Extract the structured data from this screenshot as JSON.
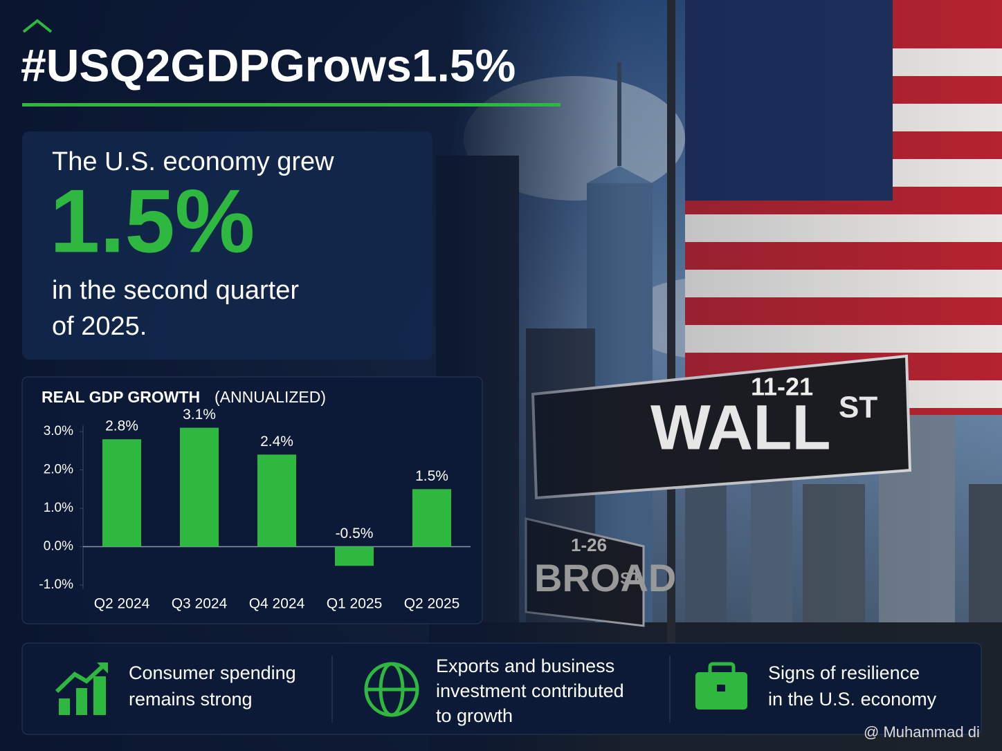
{
  "header": {
    "title": "#USQ2GDPGrows1.5%"
  },
  "callout": {
    "lead": "The U.S. economy grew",
    "figure": "1.5%",
    "lines": [
      "in the second quarter",
      "of 2025."
    ]
  },
  "chart_data": {
    "type": "bar",
    "title": "REAL GDP GROWTH",
    "subtitle": "(ANNUALIZED)",
    "categories": [
      "Q2 2024",
      "Q3 2024",
      "Q4 2024",
      "Q1 2025",
      "Q2 2025"
    ],
    "values": [
      2.8,
      3.1,
      2.4,
      -0.5,
      1.5
    ],
    "value_labels": [
      "2.8%",
      "3.1%",
      "2.4%",
      "-0.5%",
      "1.5%"
    ],
    "color": "#2fb83f",
    "ylim": [
      -1,
      3.2
    ],
    "yticks": [
      {
        "value": 3,
        "label": "3.0%"
      },
      {
        "value": 2,
        "label": "2.0%"
      },
      {
        "value": 1,
        "label": "1.0%"
      },
      {
        "value": 0,
        "label": "0.0%"
      },
      {
        "value": -1,
        "label": "-1.0%"
      }
    ]
  },
  "photo": {
    "wall_number": "11-21",
    "wall": "WALL",
    "wall_st": "ST",
    "broad_number": "1-26",
    "broad": "BROAD",
    "broad_st": "ST"
  },
  "footer": {
    "items": [
      {
        "lines": [
          "Consumer spending",
          "remains strong"
        ]
      },
      {
        "lines": [
          "Exports and business",
          "investment contributed",
          "to growth"
        ]
      },
      {
        "lines": [
          "Signs of resilience",
          "in the U.S. economy"
        ]
      }
    ]
  },
  "watermark": "@ Muhammad di"
}
